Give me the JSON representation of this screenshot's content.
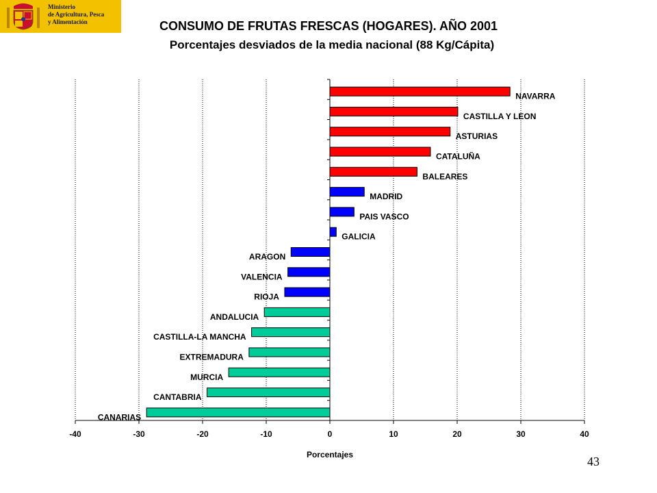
{
  "header": {
    "org_lines": [
      "Ministerio",
      "de Agricultura, Pesca",
      "y Alimentación"
    ],
    "title": "CONSUMO DE FRUTAS FRESCAS (HOGARES). AÑO 2001",
    "subtitle": "Porcentajes desviados de la media nacional (88 Kg/Cápita)"
  },
  "footer": {
    "page_number": "43"
  },
  "colors": {
    "positive_high": "#ff0000",
    "positive_low": "#0000ff",
    "negative_low": "#0000ff",
    "negative_high": "#00cc99",
    "logo_background": "#f2c200"
  },
  "chart_data": {
    "type": "bar",
    "orientation": "horizontal",
    "xlabel": "Porcentajes",
    "xlim": [
      -40,
      40
    ],
    "xticks": [
      -40,
      -30,
      -20,
      -10,
      0,
      10,
      20,
      30,
      40
    ],
    "grid": "vertical dotted",
    "categories": [
      "NAVARRA",
      "CASTILLA Y LEON",
      "ASTURIAS",
      "CATALUÑA",
      "BALEARES",
      "MADRID",
      "PAIS VASCO",
      "GALICIA",
      "ARAGON",
      "VALENCIA",
      "RIOJA",
      "ANDALUCIA",
      "CASTILLA-LA MANCHA",
      "EXTREMADURA",
      "MURCIA",
      "CANTABRIA",
      "CANARIAS"
    ],
    "values": [
      28.3,
      20.1,
      18.9,
      15.8,
      13.7,
      5.4,
      3.8,
      1.0,
      -6.1,
      -6.6,
      -7.1,
      -10.3,
      -12.3,
      -12.7,
      -15.9,
      -19.3,
      -28.8
    ],
    "bar_colors": [
      "#ff0000",
      "#ff0000",
      "#ff0000",
      "#ff0000",
      "#ff0000",
      "#0000ff",
      "#0000ff",
      "#0000ff",
      "#0000ff",
      "#0000ff",
      "#0000ff",
      "#00cc99",
      "#00cc99",
      "#00cc99",
      "#00cc99",
      "#00cc99",
      "#00cc99"
    ]
  }
}
